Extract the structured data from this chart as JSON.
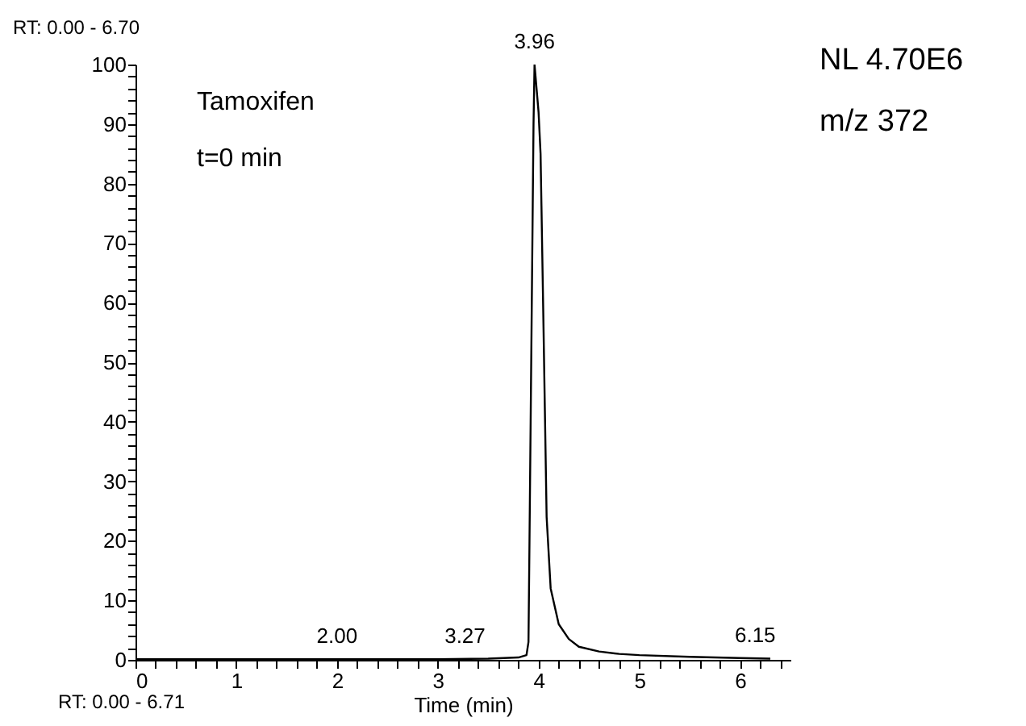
{
  "chart_data": {
    "type": "line",
    "xlabel": "Time (min)",
    "x": [
      0,
      1,
      2,
      3,
      3.5,
      3.8,
      3.88,
      3.9,
      3.91,
      3.93,
      3.95,
      3.96,
      3.98,
      4.0,
      4.02,
      4.05,
      4.08,
      4.12,
      4.2,
      4.3,
      4.4,
      4.6,
      4.8,
      5.0,
      5.5,
      6.0,
      6.3
    ],
    "series": [
      {
        "color": "#000000",
        "values": [
          0.1,
          0.1,
          0.1,
          0.1,
          0.2,
          0.4,
          0.8,
          3,
          20,
          55,
          90,
          100,
          96,
          92,
          85,
          55,
          24,
          12,
          6,
          3.5,
          2.2,
          1.4,
          1,
          0.8,
          0.5,
          0.3,
          0.2
        ]
      }
    ],
    "xlim": [
      0,
      6.5
    ],
    "xticks": [
      0,
      {
        "value": 0.2,
        "label": null
      },
      {
        "value": 0.4,
        "label": null
      },
      {
        "value": 0.6,
        "label": null
      },
      {
        "value": 0.8,
        "label": null
      },
      1,
      {
        "value": 1.2,
        "label": null
      },
      {
        "value": 1.4,
        "label": null
      },
      {
        "value": 1.6,
        "label": null
      },
      {
        "value": 1.8,
        "label": null
      },
      2,
      {
        "value": 2.2,
        "label": null
      },
      {
        "value": 2.4,
        "label": null
      },
      {
        "value": 2.6,
        "label": null
      },
      {
        "value": 2.8,
        "label": null
      },
      3,
      {
        "value": 3.2,
        "label": null
      },
      {
        "value": 3.4,
        "label": null
      },
      {
        "value": 3.6,
        "label": null
      },
      {
        "value": 3.8,
        "label": null
      },
      4,
      {
        "value": 4.2,
        "label": null
      },
      {
        "value": 4.4,
        "label": null
      },
      {
        "value": 4.6,
        "label": null
      },
      {
        "value": 4.8,
        "label": null
      },
      5,
      {
        "value": 5.2,
        "label": null
      },
      {
        "value": 5.4,
        "label": null
      },
      {
        "value": 5.6,
        "label": null
      },
      {
        "value": 5.8,
        "label": null
      },
      6,
      {
        "value": 6.2,
        "label": null
      },
      {
        "value": 6.4,
        "label": null
      }
    ],
    "ylim": [
      0,
      100
    ],
    "yticks": [
      0,
      {
        "value": 2,
        "label": null
      },
      {
        "value": 4,
        "label": null
      },
      {
        "value": 6,
        "label": null
      },
      {
        "value": 8,
        "label": null
      },
      10,
      {
        "value": 12,
        "label": null
      },
      {
        "value": 14,
        "label": null
      },
      {
        "value": 16,
        "label": null
      },
      {
        "value": 18,
        "label": null
      },
      20,
      {
        "value": 22,
        "label": null
      },
      {
        "value": 24,
        "label": null
      },
      {
        "value": 26,
        "label": null
      },
      {
        "value": 28,
        "label": null
      },
      30,
      {
        "value": 32,
        "label": null
      },
      {
        "value": 34,
        "label": null
      },
      {
        "value": 36,
        "label": null
      },
      {
        "value": 38,
        "label": null
      },
      40,
      {
        "value": 42,
        "label": null
      },
      {
        "value": 44,
        "label": null
      },
      {
        "value": 46,
        "label": null
      },
      {
        "value": 48,
        "label": null
      },
      50,
      {
        "value": 52,
        "label": null
      },
      {
        "value": 54,
        "label": null
      },
      {
        "value": 56,
        "label": null
      },
      {
        "value": 58,
        "label": null
      },
      60,
      {
        "value": 62,
        "label": null
      },
      {
        "value": 64,
        "label": null
      },
      {
        "value": 66,
        "label": null
      },
      {
        "value": 68,
        "label": null
      },
      70,
      {
        "value": 72,
        "label": null
      },
      {
        "value": 74,
        "label": null
      },
      {
        "value": 76,
        "label": null
      },
      {
        "value": 78,
        "label": null
      },
      80,
      {
        "value": 82,
        "label": null
      },
      {
        "value": 84,
        "label": null
      },
      {
        "value": 86,
        "label": null
      },
      {
        "value": 88,
        "label": null
      },
      90,
      {
        "value": 92,
        "label": null
      },
      {
        "value": 94,
        "label": null
      },
      {
        "value": 96,
        "label": null
      },
      {
        "value": 98,
        "label": null
      },
      100
    ],
    "grid": false,
    "legend": false,
    "marker": "none",
    "line_style": "solid",
    "annotations": [
      "RT: 0.00 - 6.70",
      "RT: 0.00 - 6.71",
      "Tamoxifen",
      "t=0 min",
      "NL 4.70E6",
      "m/z 372",
      {
        "text": "2.00",
        "x": 2.0,
        "y": 0.1
      },
      {
        "text": "3.27",
        "x": 3.27,
        "y": 0.1
      },
      {
        "text": "3.96",
        "x": 3.96,
        "y": 100
      },
      {
        "text": "6.15",
        "x": 6.15,
        "y": 0.3
      }
    ]
  }
}
